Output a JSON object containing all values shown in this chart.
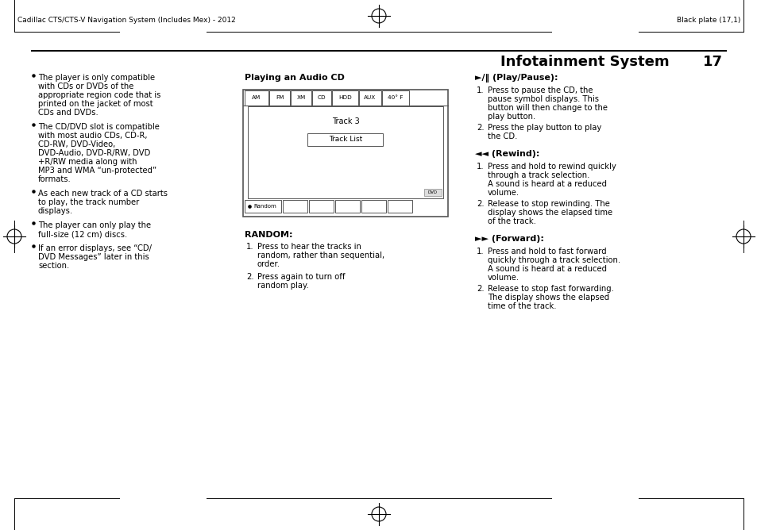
{
  "bg_color": "#ffffff",
  "header_left": "Cadillac CTS/CTS-V Navigation System (Includes Mex) - 2012",
  "header_right": "Black plate (17,1)",
  "title": "Infotainment System",
  "page_num": "17",
  "col1_bullets": [
    "The player is only compatible\nwith CDs or DVDs of the\nappropriate region code that is\nprinted on the jacket of most\nCDs and DVDs.",
    "The CD/DVD slot is compatible\nwith most audio CDs, CD-R,\nCD-RW, DVD-Video,\nDVD-Audio, DVD-R/RW, DVD\n+R/RW media along with\nMP3 and WMA “un-protected”\nformats.",
    "As each new track of a CD starts\nto play, the track number\ndisplays.",
    "The player can only play the\nfull-size (12 cm) discs.",
    "If an error displays, see “CD/\nDVD Messages” later in this\nsection."
  ],
  "col2_title": "Playing an Audio CD",
  "col2_random_title": "RANDOM:",
  "col2_random_items": [
    "Press to hear the tracks in\nrandom, rather than sequential,\norder.",
    "Press again to turn off\nrandom play."
  ],
  "col3_items": [
    {
      "heading": "►/‖ (Play/Pause):",
      "items": [
        "Press to pause the CD, the\npause symbol displays. This\nbutton will then change to the\nplay button.",
        "Press the play button to play\nthe CD."
      ]
    },
    {
      "heading": "◄◄ (Rewind):",
      "items": [
        "Press and hold to rewind quickly\nthrough a track selection.\nA sound is heard at a reduced\nvolume.",
        "Release to stop rewinding. The\ndisplay shows the elapsed time\nof the track."
      ]
    },
    {
      "heading": "►► (Forward):",
      "items": [
        "Press and hold to fast forward\nquickly through a track selection.\nA sound is heard at a reduced\nvolume.",
        "Release to stop fast forwarding.\nThe display shows the elapsed\ntime of the track."
      ]
    }
  ],
  "screen_tabs": [
    "AM",
    "FM",
    "XM",
    "CD",
    "HDD",
    "AUX",
    "40° F"
  ],
  "screen_track": "Track 3",
  "screen_tracklist": "Track List",
  "font_size_body": 7.2,
  "font_size_header": 6.5,
  "font_size_title": 13,
  "font_size_bold": 8.0
}
